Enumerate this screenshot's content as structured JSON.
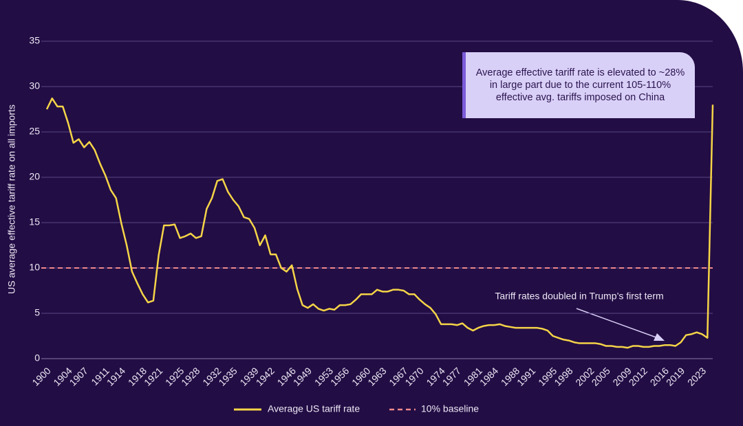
{
  "chart_data": {
    "type": "line",
    "y_label": "US average effective tariff rate on all imports",
    "x": [
      1900,
      1901,
      1902,
      1903,
      1904,
      1905,
      1906,
      1907,
      1908,
      1909,
      1910,
      1911,
      1912,
      1913,
      1914,
      1915,
      1916,
      1917,
      1918,
      1919,
      1920,
      1921,
      1922,
      1923,
      1924,
      1925,
      1926,
      1927,
      1928,
      1929,
      1930,
      1931,
      1932,
      1933,
      1934,
      1935,
      1936,
      1937,
      1938,
      1939,
      1940,
      1941,
      1942,
      1943,
      1944,
      1945,
      1946,
      1947,
      1948,
      1949,
      1950,
      1951,
      1952,
      1953,
      1954,
      1955,
      1956,
      1957,
      1958,
      1959,
      1960,
      1961,
      1962,
      1963,
      1964,
      1965,
      1966,
      1967,
      1968,
      1969,
      1970,
      1971,
      1972,
      1973,
      1974,
      1975,
      1976,
      1977,
      1978,
      1979,
      1980,
      1981,
      1982,
      1983,
      1984,
      1985,
      1986,
      1987,
      1988,
      1989,
      1990,
      1991,
      1992,
      1993,
      1994,
      1995,
      1996,
      1997,
      1998,
      1999,
      2000,
      2001,
      2002,
      2003,
      2004,
      2005,
      2006,
      2007,
      2008,
      2009,
      2010,
      2011,
      2012,
      2013,
      2014,
      2015,
      2016,
      2017,
      2018,
      2019,
      2020,
      2021,
      2022,
      2023,
      2024,
      2025
    ],
    "series": [
      {
        "name": "Average US tariff rate",
        "color": "#f5d547",
        "values": [
          27.5,
          28.7,
          27.8,
          27.8,
          26,
          23.8,
          24.2,
          23.3,
          23.9,
          23,
          21.5,
          20.2,
          18.6,
          17.7,
          14.9,
          12.5,
          9.6,
          8.3,
          7.1,
          6.2,
          6.4,
          11.4,
          14.7,
          14.7,
          14.8,
          13.3,
          13.5,
          13.8,
          13.3,
          13.5,
          16.5,
          17.7,
          19.6,
          19.8,
          18.4,
          17.5,
          16.8,
          15.6,
          15.4,
          14.4,
          12.5,
          13.6,
          11.5,
          11.5,
          10,
          9.6,
          10.3,
          7.7,
          5.9,
          5.6,
          6,
          5.5,
          5.3,
          5.5,
          5.4,
          5.9,
          5.9,
          6,
          6.5,
          7.1,
          7.1,
          7.1,
          7.6,
          7.4,
          7.4,
          7.6,
          7.6,
          7.5,
          7.1,
          7.1,
          6.5,
          6,
          5.6,
          4.9,
          3.8,
          3.8,
          3.8,
          3.7,
          3.9,
          3.4,
          3.1,
          3.4,
          3.6,
          3.7,
          3.7,
          3.8,
          3.6,
          3.5,
          3.4,
          3.4,
          3.4,
          3.4,
          3.4,
          3.3,
          3.1,
          2.5,
          2.3,
          2.1,
          2,
          1.8,
          1.7,
          1.7,
          1.7,
          1.7,
          1.6,
          1.4,
          1.4,
          1.3,
          1.3,
          1.2,
          1.4,
          1.4,
          1.3,
          1.3,
          1.4,
          1.4,
          1.5,
          1.5,
          1.4,
          1.8,
          2.6,
          2.7,
          2.9,
          2.7,
          2.3,
          28
        ]
      }
    ],
    "baseline": {
      "name": "10% baseline",
      "value": 10,
      "color": "#f08a8a"
    },
    "xlim": [
      1900,
      2025
    ],
    "xticks": [
      1900,
      1904,
      1907,
      1911,
      1914,
      1918,
      1921,
      1925,
      1928,
      1932,
      1935,
      1939,
      1942,
      1946,
      1949,
      1953,
      1956,
      1960,
      1963,
      1967,
      1970,
      1974,
      1977,
      1981,
      1984,
      1988,
      1991,
      1995,
      1998,
      2002,
      2005,
      2009,
      2012,
      2016,
      2019,
      2023
    ],
    "ylim": [
      0,
      35
    ],
    "yticks": [
      0,
      5,
      10,
      15,
      20,
      25,
      30,
      35
    ],
    "grid": true,
    "annotations": [
      "Average effective tariff rate is elevated to ~28% in large part due to the current 105-110% effective avg. tariffs imposed on China",
      "Tariff rates doubled in Trump’s first term"
    ]
  }
}
